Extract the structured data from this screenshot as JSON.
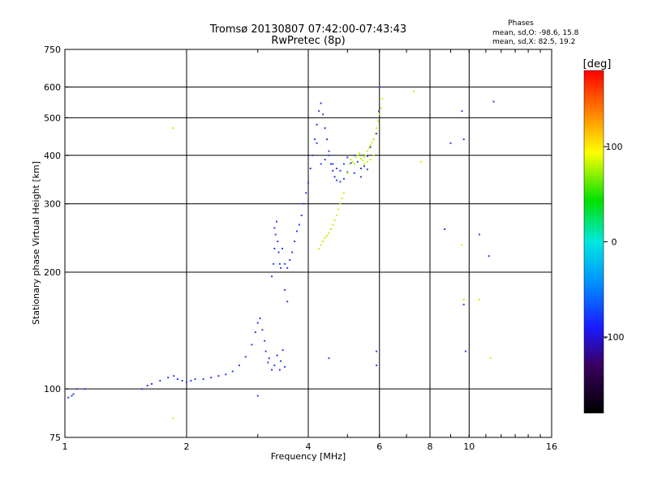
{
  "chart_data": {
    "type": "scatter",
    "title": "Tromsø 20130807 07:42:00-07:43:43",
    "subtitle": "RwPretec (8p)",
    "xlabel": "Frequency [MHz]",
    "ylabel": "Stationary phase Virtual Height [km]",
    "xscale": "log",
    "yscale": "log",
    "xlim": [
      1,
      16
    ],
    "ylim": [
      75,
      750
    ],
    "xticks": [
      1,
      2,
      4,
      6,
      8,
      10,
      16
    ],
    "xtick_labels": [
      "1",
      "2",
      "4",
      "6",
      "8",
      "10",
      "16"
    ],
    "x_gridlines": [
      2,
      4,
      6,
      8,
      10
    ],
    "yticks": [
      75,
      100,
      200,
      300,
      400,
      500,
      600,
      750
    ],
    "ytick_labels": [
      "75",
      "100",
      "200",
      "300",
      "400",
      "500",
      "600",
      "750"
    ],
    "y_gridlines": [
      100,
      200,
      300,
      400,
      500,
      600
    ],
    "grid": true,
    "stats_title": "Phases",
    "stats_lines": [
      "mean, sd,O: -98.6, 15.8",
      "mean, sd,X: 82.5, 19.2"
    ],
    "colorbar": {
      "label": "[deg]",
      "range": [
        -180,
        180
      ],
      "ticks": [
        100,
        0,
        -100
      ],
      "tick_labels": [
        "100",
        "0",
        "-100"
      ]
    },
    "series": [
      {
        "name": "O-mode",
        "phase_deg": -98.6,
        "color": "#2a3cf0",
        "points": [
          [
            1.02,
            95
          ],
          [
            1.04,
            96
          ],
          [
            1.05,
            97
          ],
          [
            1.07,
            100
          ],
          [
            1.12,
            100
          ],
          [
            1.55,
            100
          ],
          [
            1.6,
            102
          ],
          [
            1.64,
            103
          ],
          [
            1.72,
            105
          ],
          [
            1.8,
            107
          ],
          [
            1.86,
            108
          ],
          [
            1.9,
            106
          ],
          [
            1.95,
            105
          ],
          [
            2.0,
            104
          ],
          [
            2.05,
            105
          ],
          [
            2.1,
            106
          ],
          [
            2.2,
            106
          ],
          [
            2.3,
            107
          ],
          [
            2.4,
            108
          ],
          [
            2.5,
            109
          ],
          [
            2.6,
            111
          ],
          [
            2.7,
            115
          ],
          [
            2.8,
            121
          ],
          [
            2.9,
            130
          ],
          [
            2.96,
            140
          ],
          [
            3.0,
            148
          ],
          [
            3.04,
            152
          ],
          [
            3.08,
            142
          ],
          [
            3.12,
            133
          ],
          [
            3.14,
            125
          ],
          [
            3.18,
            117
          ],
          [
            3.2,
            120
          ],
          [
            3.25,
            112
          ],
          [
            3.3,
            115
          ],
          [
            3.35,
            122
          ],
          [
            3.4,
            112
          ],
          [
            3.42,
            118
          ],
          [
            3.46,
            126
          ],
          [
            3.5,
            114
          ],
          [
            3.25,
            195
          ],
          [
            3.28,
            210
          ],
          [
            3.3,
            230
          ],
          [
            3.32,
            250
          ],
          [
            3.34,
            270
          ],
          [
            3.36,
            240
          ],
          [
            3.38,
            225
          ],
          [
            3.4,
            210
          ],
          [
            3.42,
            205
          ],
          [
            3.45,
            230
          ],
          [
            3.5,
            210
          ],
          [
            3.55,
            205
          ],
          [
            3.6,
            215
          ],
          [
            3.65,
            225
          ],
          [
            3.7,
            240
          ],
          [
            3.75,
            255
          ],
          [
            3.8,
            265
          ],
          [
            3.85,
            280
          ],
          [
            3.9,
            300
          ],
          [
            3.95,
            320
          ],
          [
            4.0,
            340
          ],
          [
            4.05,
            370
          ],
          [
            4.1,
            400
          ],
          [
            4.15,
            440
          ],
          [
            4.2,
            480
          ],
          [
            4.25,
            520
          ],
          [
            4.3,
            545
          ],
          [
            4.35,
            510
          ],
          [
            4.4,
            470
          ],
          [
            4.45,
            440
          ],
          [
            4.5,
            410
          ],
          [
            4.55,
            380
          ],
          [
            4.6,
            365
          ],
          [
            4.65,
            352
          ],
          [
            4.7,
            345
          ],
          [
            4.8,
            342
          ],
          [
            4.9,
            348
          ],
          [
            5.0,
            362
          ],
          [
            5.1,
            382
          ],
          [
            5.2,
            400
          ],
          [
            5.3,
            385
          ],
          [
            5.4,
            370
          ],
          [
            5.5,
            375
          ],
          [
            5.6,
            398
          ],
          [
            5.7,
            420
          ],
          [
            5.8,
            440
          ],
          [
            5.9,
            455
          ],
          [
            5.98,
            520
          ],
          [
            3.5,
            180
          ],
          [
            3.55,
            168
          ],
          [
            3.3,
            260
          ],
          [
            4.2,
            430
          ],
          [
            4.3,
            380
          ],
          [
            4.4,
            390
          ],
          [
            4.5,
            400
          ],
          [
            4.6,
            380
          ],
          [
            4.7,
            370
          ],
          [
            4.8,
            365
          ],
          [
            4.9,
            380
          ],
          [
            5.0,
            395
          ],
          [
            5.2,
            360
          ],
          [
            5.4,
            352
          ],
          [
            5.6,
            368
          ],
          [
            6.0,
            600
          ],
          [
            3.0,
            96
          ],
          [
            5.9,
            115
          ],
          [
            9.0,
            430
          ],
          [
            9.6,
            520
          ],
          [
            9.7,
            440
          ],
          [
            9.7,
            165
          ],
          [
            9.8,
            125
          ],
          [
            10.6,
            250
          ],
          [
            11.2,
            220
          ],
          [
            11.5,
            550
          ],
          [
            8.7,
            258
          ],
          [
            4.5,
            120
          ],
          [
            5.9,
            125
          ]
        ]
      },
      {
        "name": "X-mode",
        "phase_deg": 82.5,
        "color": "#c8f000",
        "points": [
          [
            4.25,
            230
          ],
          [
            4.3,
            235
          ],
          [
            4.35,
            240
          ],
          [
            4.4,
            245
          ],
          [
            4.45,
            248
          ],
          [
            4.5,
            252
          ],
          [
            4.55,
            258
          ],
          [
            4.6,
            265
          ],
          [
            4.65,
            272
          ],
          [
            4.7,
            280
          ],
          [
            4.75,
            290
          ],
          [
            4.8,
            300
          ],
          [
            4.85,
            310
          ],
          [
            4.9,
            320
          ],
          [
            5.0,
            360
          ],
          [
            5.05,
            380
          ],
          [
            5.1,
            390
          ],
          [
            5.15,
            385
          ],
          [
            5.2,
            380
          ],
          [
            5.25,
            395
          ],
          [
            5.3,
            400
          ],
          [
            5.35,
            405
          ],
          [
            5.4,
            392
          ],
          [
            5.45,
            388
          ],
          [
            5.5,
            395
          ],
          [
            5.55,
            400
          ],
          [
            5.6,
            410
          ],
          [
            5.65,
            418
          ],
          [
            5.7,
            425
          ],
          [
            5.75,
            432
          ],
          [
            5.8,
            440
          ],
          [
            5.85,
            455
          ],
          [
            5.9,
            470
          ],
          [
            5.95,
            490
          ],
          [
            6.0,
            510
          ],
          [
            6.05,
            530
          ],
          [
            6.1,
            560
          ],
          [
            5.5,
            380
          ],
          [
            5.6,
            385
          ],
          [
            5.7,
            390
          ],
          [
            5.8,
            400
          ],
          [
            7.3,
            585
          ],
          [
            7.6,
            385
          ],
          [
            9.6,
            235
          ],
          [
            9.7,
            170
          ],
          [
            10.6,
            170
          ],
          [
            11.3,
            120
          ],
          [
            1.85,
            470
          ],
          [
            1.85,
            84
          ]
        ]
      }
    ]
  }
}
